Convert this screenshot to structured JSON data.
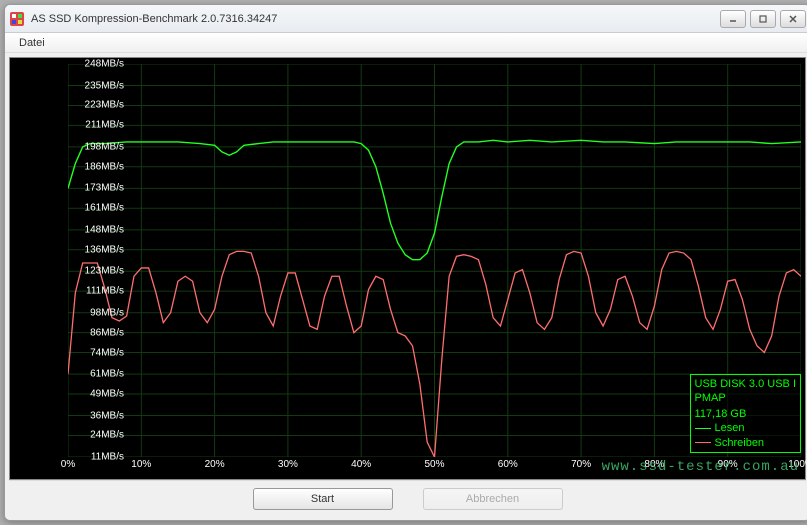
{
  "window": {
    "title": "AS SSD Kompression-Benchmark 2.0.7316.34247"
  },
  "menu": {
    "file": "Datei"
  },
  "chart": {
    "type": "line",
    "background_color": "#000000",
    "grid_color": "#113b11",
    "axis_text_color": "#ffffff",
    "y_unit": "MB/s",
    "ylim": [
      11,
      248
    ],
    "y_ticks": [
      248,
      235,
      223,
      211,
      198,
      186,
      173,
      161,
      148,
      136,
      123,
      111,
      98,
      86,
      74,
      61,
      49,
      36,
      24,
      11
    ],
    "xlim": [
      0,
      100
    ],
    "x_ticks": [
      0,
      10,
      20,
      30,
      40,
      50,
      60,
      70,
      80,
      90,
      100
    ],
    "x_tick_suffix": "%",
    "series": [
      {
        "name": "Lesen",
        "color": "#22ff22",
        "line_width": 1.4,
        "data": [
          [
            0,
            173
          ],
          [
            1,
            188
          ],
          [
            2,
            198
          ],
          [
            3,
            200
          ],
          [
            5,
            200
          ],
          [
            8,
            201
          ],
          [
            10,
            201
          ],
          [
            12,
            201
          ],
          [
            15,
            201
          ],
          [
            18,
            200
          ],
          [
            20,
            199
          ],
          [
            21,
            195
          ],
          [
            22,
            193
          ],
          [
            23,
            195
          ],
          [
            24,
            199
          ],
          [
            26,
            200
          ],
          [
            28,
            201
          ],
          [
            30,
            201
          ],
          [
            33,
            201
          ],
          [
            36,
            201
          ],
          [
            39,
            201
          ],
          [
            40,
            200
          ],
          [
            41,
            196
          ],
          [
            42,
            186
          ],
          [
            43,
            170
          ],
          [
            44,
            152
          ],
          [
            45,
            140
          ],
          [
            46,
            133
          ],
          [
            47,
            130
          ],
          [
            48,
            130
          ],
          [
            49,
            134
          ],
          [
            50,
            146
          ],
          [
            51,
            168
          ],
          [
            52,
            188
          ],
          [
            53,
            198
          ],
          [
            54,
            201
          ],
          [
            56,
            201
          ],
          [
            58,
            202
          ],
          [
            60,
            201
          ],
          [
            63,
            202
          ],
          [
            66,
            201
          ],
          [
            70,
            202
          ],
          [
            73,
            201
          ],
          [
            76,
            201
          ],
          [
            80,
            200
          ],
          [
            83,
            201
          ],
          [
            86,
            201
          ],
          [
            90,
            201
          ],
          [
            93,
            201
          ],
          [
            96,
            200
          ],
          [
            100,
            201
          ]
        ]
      },
      {
        "name": "Schreiben",
        "color": "#ff6e6e",
        "line_width": 1.3,
        "data": [
          [
            0,
            61
          ],
          [
            1,
            110
          ],
          [
            2,
            128
          ],
          [
            3,
            128
          ],
          [
            4,
            128
          ],
          [
            5,
            113
          ],
          [
            6,
            95
          ],
          [
            7,
            93
          ],
          [
            8,
            96
          ],
          [
            9,
            120
          ],
          [
            10,
            125
          ],
          [
            11,
            125
          ],
          [
            12,
            110
          ],
          [
            13,
            92
          ],
          [
            14,
            98
          ],
          [
            15,
            117
          ],
          [
            16,
            120
          ],
          [
            17,
            117
          ],
          [
            18,
            98
          ],
          [
            19,
            92
          ],
          [
            20,
            100
          ],
          [
            21,
            120
          ],
          [
            22,
            133
          ],
          [
            23,
            135
          ],
          [
            24,
            135
          ],
          [
            25,
            134
          ],
          [
            26,
            120
          ],
          [
            27,
            98
          ],
          [
            28,
            90
          ],
          [
            29,
            108
          ],
          [
            30,
            122
          ],
          [
            31,
            122
          ],
          [
            32,
            106
          ],
          [
            33,
            90
          ],
          [
            34,
            88
          ],
          [
            35,
            108
          ],
          [
            36,
            120
          ],
          [
            37,
            120
          ],
          [
            38,
            102
          ],
          [
            39,
            86
          ],
          [
            40,
            90
          ],
          [
            41,
            112
          ],
          [
            42,
            120
          ],
          [
            43,
            118
          ],
          [
            44,
            100
          ],
          [
            45,
            86
          ],
          [
            46,
            84
          ],
          [
            47,
            78
          ],
          [
            48,
            55
          ],
          [
            49,
            20
          ],
          [
            50,
            11
          ],
          [
            51,
            70
          ],
          [
            52,
            120
          ],
          [
            53,
            132
          ],
          [
            54,
            133
          ],
          [
            55,
            132
          ],
          [
            56,
            130
          ],
          [
            57,
            115
          ],
          [
            58,
            95
          ],
          [
            59,
            90
          ],
          [
            60,
            106
          ],
          [
            61,
            122
          ],
          [
            62,
            124
          ],
          [
            63,
            110
          ],
          [
            64,
            92
          ],
          [
            65,
            88
          ],
          [
            66,
            95
          ],
          [
            67,
            118
          ],
          [
            68,
            133
          ],
          [
            69,
            135
          ],
          [
            70,
            134
          ],
          [
            71,
            120
          ],
          [
            72,
            98
          ],
          [
            73,
            90
          ],
          [
            74,
            100
          ],
          [
            75,
            118
          ],
          [
            76,
            120
          ],
          [
            77,
            108
          ],
          [
            78,
            92
          ],
          [
            79,
            88
          ],
          [
            80,
            102
          ],
          [
            81,
            124
          ],
          [
            82,
            134
          ],
          [
            83,
            135
          ],
          [
            84,
            134
          ],
          [
            85,
            130
          ],
          [
            86,
            114
          ],
          [
            87,
            95
          ],
          [
            88,
            88
          ],
          [
            89,
            100
          ],
          [
            90,
            117
          ],
          [
            91,
            118
          ],
          [
            92,
            106
          ],
          [
            93,
            88
          ],
          [
            94,
            78
          ],
          [
            95,
            74
          ],
          [
            96,
            84
          ],
          [
            97,
            108
          ],
          [
            98,
            122
          ],
          [
            99,
            124
          ],
          [
            100,
            120
          ]
        ]
      }
    ]
  },
  "legend": {
    "device_line1": "USB DISK 3.0 USB I",
    "device_line2": "PMAP",
    "capacity": "117,18 GB",
    "read_label": "Lesen",
    "write_label": "Schreiben",
    "border_color": "#22ff22",
    "text_color": "#22ff22"
  },
  "buttons": {
    "start": "Start",
    "cancel": "Abbrechen"
  },
  "watermark": "www.ssd-tester.com.au"
}
